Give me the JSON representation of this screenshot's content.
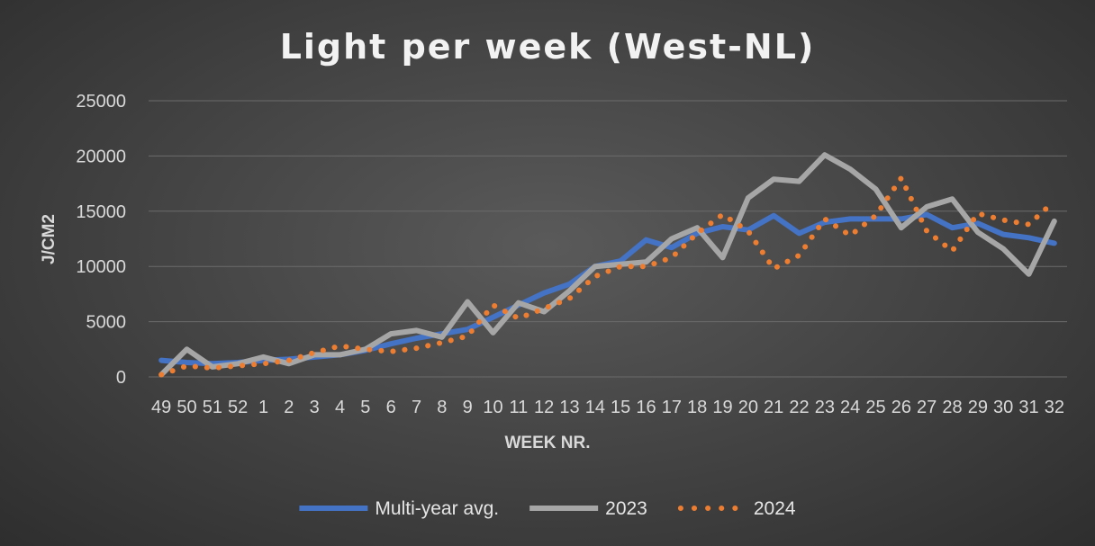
{
  "chart_data": {
    "type": "line",
    "title": "Light per week (West-NL)",
    "xlabel": "WEEK NR.",
    "ylabel": "J/CM2",
    "ylim": [
      0,
      25000
    ],
    "yticks": [
      "0",
      "5000",
      "10000",
      "15000",
      "20000",
      "25000"
    ],
    "categories": [
      "49",
      "50",
      "51",
      "52",
      "1",
      "2",
      "3",
      "4",
      "5",
      "6",
      "7",
      "8",
      "9",
      "10",
      "11",
      "12",
      "13",
      "14",
      "15",
      "16",
      "17",
      "18",
      "19",
      "20",
      "21",
      "22",
      "23",
      "24",
      "25",
      "26",
      "27",
      "28",
      "29",
      "30",
      "31",
      "32"
    ],
    "grid": true,
    "legend_position": "bottom",
    "series": [
      {
        "name": "Multi-year avg.",
        "color": "#4472c4",
        "style": "solid",
        "values": [
          1500,
          1300,
          1200,
          1300,
          1500,
          1600,
          1800,
          2000,
          2400,
          3000,
          3500,
          3900,
          4300,
          5400,
          6500,
          7600,
          8400,
          10000,
          10500,
          12400,
          11700,
          13000,
          13600,
          13300,
          14600,
          13000,
          14000,
          14300,
          14300,
          14300,
          14700,
          13500,
          13900,
          12900,
          12600,
          12100
        ]
      },
      {
        "name": "2023",
        "color": "#a6a6a6",
        "style": "solid",
        "values": [
          200,
          2500,
          900,
          1200,
          1800,
          1200,
          2000,
          2000,
          2500,
          3900,
          4200,
          3600,
          6800,
          4000,
          6700,
          5900,
          7800,
          10000,
          10200,
          10400,
          12500,
          13500,
          10800,
          16200,
          17900,
          17700,
          20100,
          18800,
          17000,
          13500,
          15400,
          16100,
          13100,
          11600,
          9300,
          14100
        ]
      },
      {
        "name": "2024",
        "color": "#ed7d31",
        "style": "dotted",
        "values": [
          200,
          1000,
          800,
          1000,
          1200,
          1500,
          2200,
          2800,
          2500,
          2300,
          2600,
          3100,
          3700,
          6500,
          5300,
          6200,
          7100,
          9100,
          10000,
          10000,
          10800,
          13000,
          14700,
          13200,
          9800,
          11000,
          14300,
          12800,
          14600,
          18000,
          13200,
          11400,
          14800,
          14200,
          13800,
          15900
        ]
      }
    ]
  }
}
